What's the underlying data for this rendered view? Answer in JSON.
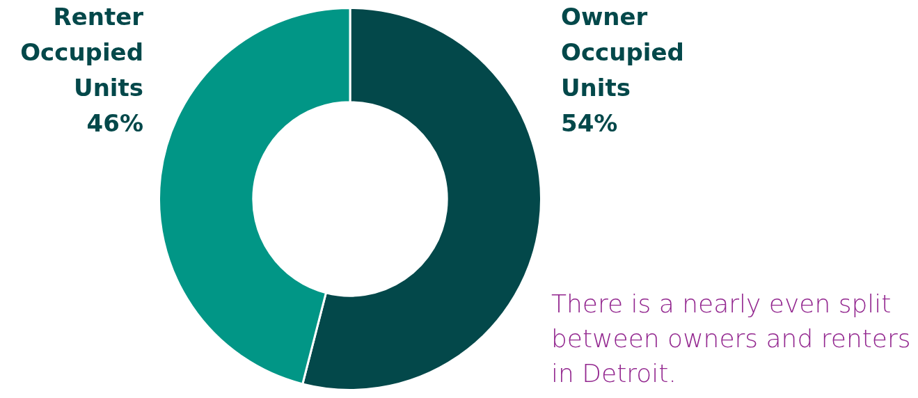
{
  "chart_data": {
    "type": "donut",
    "categories": [
      "Owner Occupied Units",
      "Renter Occupied Units"
    ],
    "values": [
      54,
      46
    ],
    "colors": [
      "#03484a",
      "#019686"
    ],
    "value_labels": [
      "54%",
      "46%"
    ],
    "annotations": [
      "There is a nearly even split between owners and renters in Detroit."
    ]
  }
}
